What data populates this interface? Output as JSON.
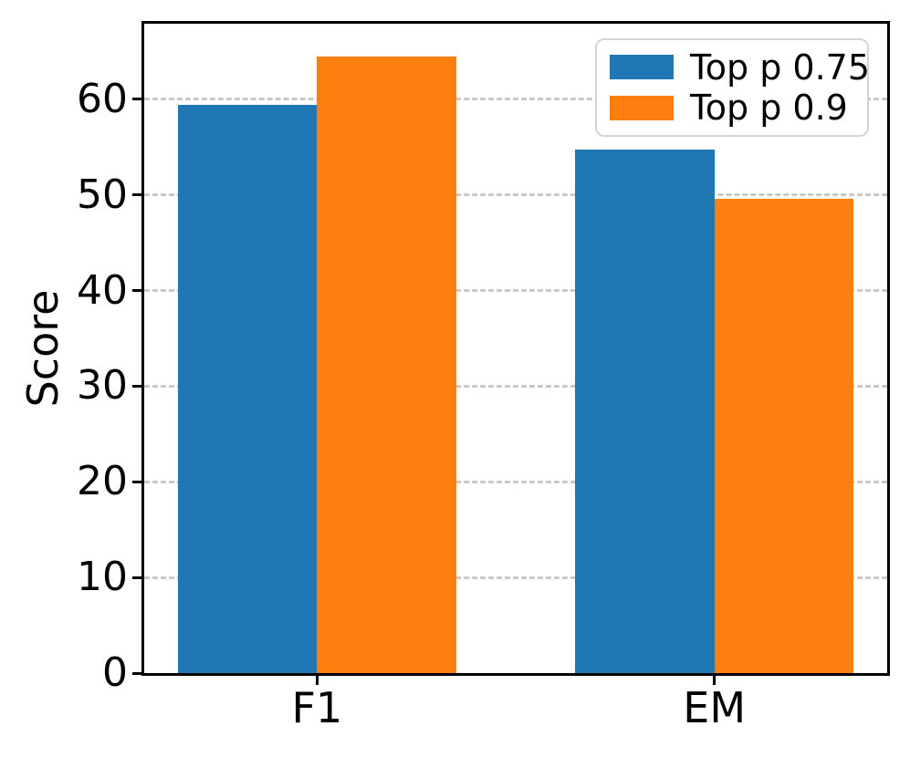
{
  "chart_data": {
    "type": "bar",
    "title": "",
    "categories": [
      "F1",
      "EM"
    ],
    "series": [
      {
        "name": "Top p 0.75",
        "color": "#1f77b4",
        "values": [
          59.4,
          54.7
        ]
      },
      {
        "name": "Top p 0.9",
        "color": "#ff7f0e",
        "values": [
          64.5,
          49.6
        ]
      }
    ],
    "xlabel": "",
    "ylabel": "Score",
    "ylim": [
      0,
      67.9
    ],
    "yticks": [
      0,
      10,
      20,
      30,
      40,
      50,
      60
    ],
    "xlim": [
      -0.435,
      1.435
    ],
    "bar_width": 0.35,
    "grid": "horizontal-dashed",
    "grid_color": "#c9c9c9",
    "spine_color": "#000000",
    "background_color": "#ffffff",
    "legend_position": "upper-right"
  },
  "legend": {
    "items": [
      {
        "label": "Top p 0.75",
        "color": "#1f77b4"
      },
      {
        "label": "Top p 0.9",
        "color": "#ff7f0e"
      }
    ]
  }
}
